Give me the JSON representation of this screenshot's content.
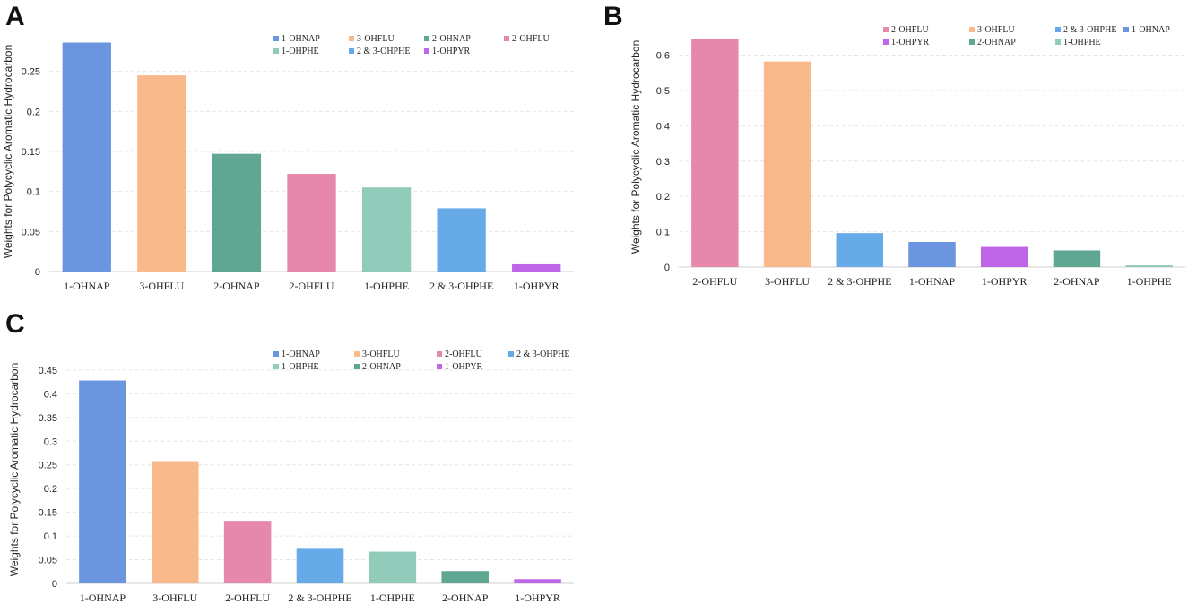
{
  "colors": {
    "1-OHNAP": "#6c95e0",
    "3-OHFLU": "#f9b98b",
    "2-OHNAP": "#5fa792",
    "2-OHFLU": "#e688ab",
    "1-OHPHE": "#91cbb9",
    "2 & 3-OHPHE": "#67aae8",
    "1-OHPYR": "#bf66e8"
  },
  "chart_data": [
    {
      "panel": "A",
      "type": "bar",
      "title": "",
      "xlabel": "",
      "ylabel": "Weights for Polycyclic Aromatic Hydrocarbon",
      "categories": [
        "1-OHNAP",
        "3-OHFLU",
        "2-OHNAP",
        "2-OHFLU",
        "1-OHPHE",
        "2 & 3-OHPHE",
        "1-OHPYR"
      ],
      "values": [
        0.286,
        0.245,
        0.147,
        0.122,
        0.105,
        0.079,
        0.009
      ],
      "ylim": [
        0,
        0.3
      ],
      "yticks": [
        0,
        0.05,
        0.1,
        0.15,
        0.2,
        0.25
      ],
      "ytick_labels": [
        "0",
        "0.05",
        "0.1",
        "0.15",
        "0.2",
        "0.25"
      ],
      "legend": [
        "1-OHNAP",
        "3-OHFLU",
        "2-OHNAP",
        "2-OHFLU",
        "1-OHPHE",
        "2 & 3-OHPHE",
        "1-OHPYR"
      ],
      "legend_position": "top-right",
      "grid": true
    },
    {
      "panel": "B",
      "type": "bar",
      "title": "",
      "xlabel": "",
      "ylabel": "Weights for Polycyclic Aromatic Hydrocarbon",
      "categories": [
        "2-OHFLU",
        "3-OHFLU",
        "2 & 3-OHPHE",
        "1-OHNAP",
        "1-OHPYR",
        "2-OHNAP",
        "1-OHPHE"
      ],
      "values": [
        0.647,
        0.582,
        0.096,
        0.071,
        0.057,
        0.047,
        0.005
      ],
      "ylim": [
        0,
        0.68
      ],
      "yticks": [
        0,
        0.1,
        0.2,
        0.3,
        0.4,
        0.5,
        0.6
      ],
      "ytick_labels": [
        "0",
        "0.1",
        "0.2",
        "0.3",
        "0.4",
        "0.5",
        "0.6"
      ],
      "legend": [
        "2-OHFLU",
        "3-OHFLU",
        "2 & 3-OHPHE",
        "1-OHNAP",
        "1-OHPYR",
        "2-OHNAP",
        "1-OHPHE"
      ],
      "legend_position": "top-right",
      "grid": true
    },
    {
      "panel": "C",
      "type": "bar",
      "title": "",
      "xlabel": "",
      "ylabel": "Weights for Polycyclic Aromatic Hydrocarbon",
      "categories": [
        "1-OHNAP",
        "3-OHFLU",
        "2-OHFLU",
        "2 & 3-OHPHE",
        "1-OHPHE",
        "2-OHNAP",
        "1-OHPYR"
      ],
      "values": [
        0.428,
        0.258,
        0.132,
        0.073,
        0.067,
        0.026,
        0.009
      ],
      "ylim": [
        0,
        0.48
      ],
      "yticks": [
        0,
        0.05,
        0.1,
        0.15,
        0.2,
        0.25,
        0.3,
        0.35,
        0.4,
        0.45
      ],
      "ytick_labels": [
        "0",
        "0.05",
        "0.1",
        "0.15",
        "0.2",
        "0.25",
        "0.3",
        "0.35",
        "0.4",
        "0.45"
      ],
      "legend": [
        "1-OHNAP",
        "3-OHFLU",
        "2-OHFLU",
        "2 & 3-OHPHE",
        "1-OHPHE",
        "2-OHNAP",
        "1-OHPYR"
      ],
      "legend_position": "top-right",
      "grid": true
    }
  ]
}
